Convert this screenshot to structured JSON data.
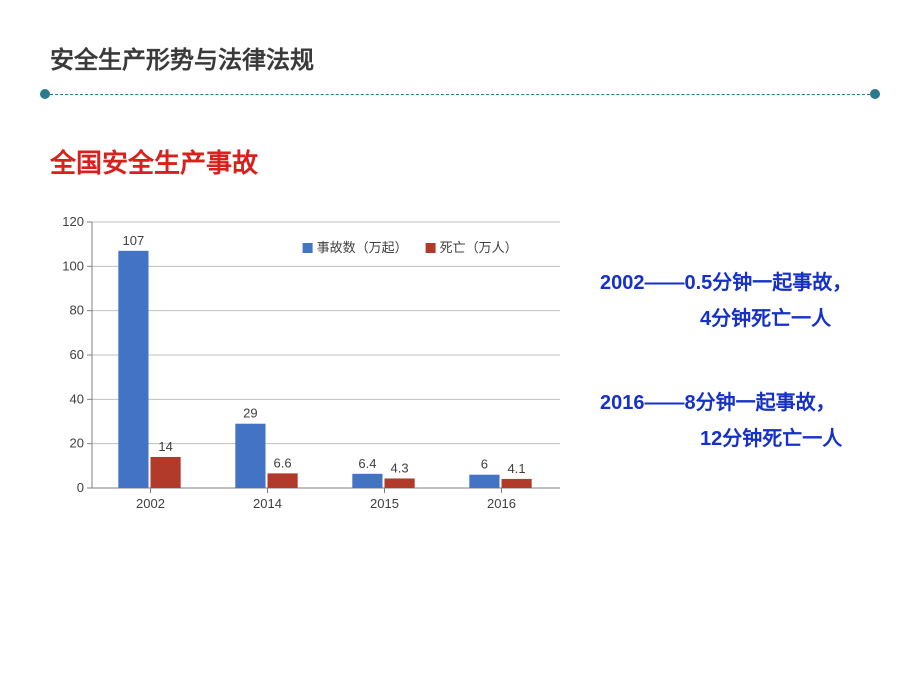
{
  "page_title": "安全生产形势与法律法规",
  "section_title": "全国安全生产事故",
  "divider_color": "#2a7a8c",
  "chart": {
    "type": "bar",
    "categories": [
      "2002",
      "2014",
      "2015",
      "2016"
    ],
    "series": [
      {
        "name": "事故数（万起）",
        "color": "#4273c4",
        "values": [
          107,
          29,
          6.4,
          6
        ]
      },
      {
        "name": "死亡（万人）",
        "color": "#b23a2a",
        "values": [
          14,
          6.6,
          4.3,
          4.1
        ]
      }
    ],
    "ylim": [
      0,
      120
    ],
    "ytick_step": 20,
    "grid_color": "#bfbfbf",
    "axis_color": "#808080",
    "background_color": "#ffffff",
    "label_fontsize": 13,
    "bar_group_width": 0.55,
    "legend_position": "top"
  },
  "side_notes": {
    "a1": "2002——0.5分钟一起事故，",
    "a2": "4分钟死亡一人",
    "b1": "2016——8分钟一起事故，",
    "b2": "12分钟死亡一人"
  }
}
